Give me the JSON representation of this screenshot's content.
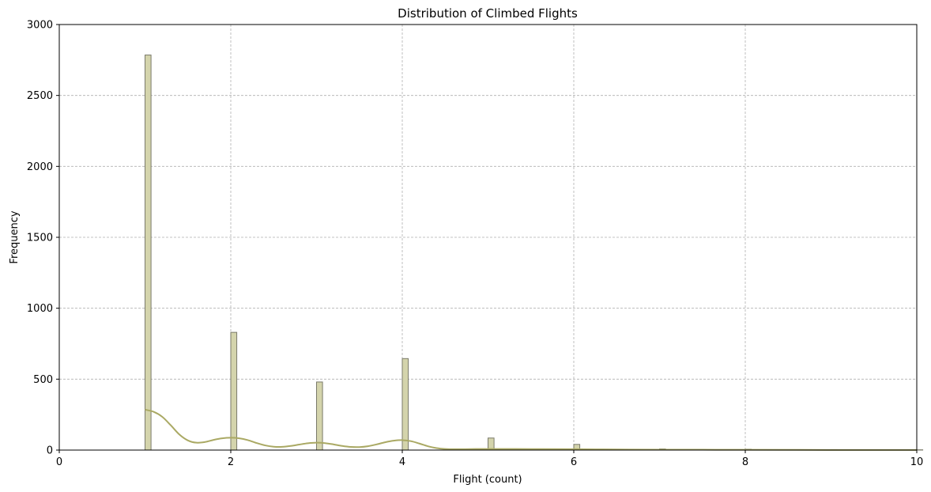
{
  "chart_data": {
    "type": "bar",
    "title": "Distribution of Climbed Flights",
    "xlabel": "Flight (count)",
    "ylabel": "Frequency",
    "xlim": [
      0,
      10
    ],
    "ylim": [
      0,
      3000
    ],
    "xticks": [
      "0",
      "2",
      "4",
      "6",
      "8",
      "10"
    ],
    "yticks": [
      "0",
      "500",
      "1000",
      "1500",
      "2000",
      "2500",
      "3000"
    ],
    "grid": true,
    "grid_style": "dashed",
    "bin_width": 0.07,
    "bars": [
      {
        "x": 1,
        "value": 2785
      },
      {
        "x": 2,
        "value": 830
      },
      {
        "x": 3,
        "value": 480
      },
      {
        "x": 4,
        "value": 645
      },
      {
        "x": 5,
        "value": 85
      },
      {
        "x": 6,
        "value": 40
      },
      {
        "x": 7,
        "value": 8
      },
      {
        "x": 8,
        "value": 6
      },
      {
        "x": 9,
        "value": 3
      },
      {
        "x": 10,
        "value": 2
      }
    ],
    "kde": {
      "x": [
        1.0,
        1.1,
        1.2,
        1.3,
        1.4,
        1.5,
        1.6,
        1.7,
        1.8,
        1.9,
        2.0,
        2.1,
        2.2,
        2.3,
        2.4,
        2.5,
        2.6,
        2.7,
        2.8,
        2.9,
        3.0,
        3.1,
        3.2,
        3.3,
        3.4,
        3.5,
        3.6,
        3.7,
        3.8,
        3.9,
        4.0,
        4.1,
        4.2,
        4.3,
        4.4,
        4.5,
        4.6,
        4.8,
        5.0,
        5.5,
        6.0,
        6.5,
        7.0,
        8.0,
        9.0,
        10.0
      ],
      "y": [
        285,
        270,
        235,
        175,
        110,
        68,
        52,
        57,
        72,
        83,
        87,
        83,
        70,
        50,
        33,
        24,
        23,
        29,
        39,
        48,
        52,
        49,
        40,
        29,
        22,
        21,
        27,
        40,
        55,
        66,
        70,
        63,
        46,
        27,
        14,
        8,
        6,
        7,
        8,
        7,
        6,
        4,
        3,
        2,
        1,
        1
      ]
    },
    "colors": {
      "bar_fill": "#d4d4ac",
      "bar_edge": "#7a7a6a",
      "kde_line": "#aaa964",
      "grid": "#b0b0b0"
    }
  }
}
